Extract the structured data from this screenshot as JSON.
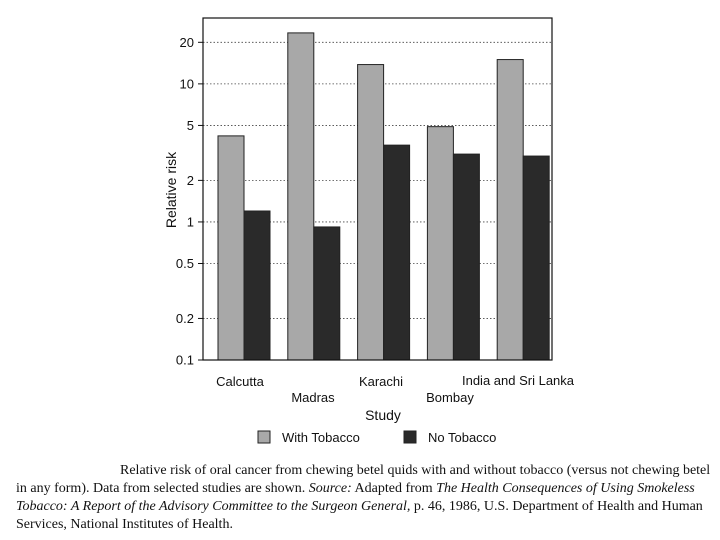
{
  "chart_data": {
    "type": "bar",
    "xlabel": "Study",
    "ylabel": "Relative risk",
    "yscale": "log",
    "ylim": [
      0.1,
      30
    ],
    "yticks": [
      0.1,
      0.2,
      0.5,
      1,
      2,
      5,
      10,
      20
    ],
    "ytick_labels": [
      "0.1",
      "0.2",
      "0.5",
      "1",
      "2",
      "5",
      "10",
      "20"
    ],
    "grid": "horizontal dotted",
    "categories": [
      "Calcutta",
      "Madras",
      "Karachi",
      "Bombay",
      "India and Sri Lanka"
    ],
    "series": [
      {
        "name": "With Tobacco",
        "values": [
          4.2,
          23.4,
          13.8,
          4.9,
          15.0
        ],
        "color": "#a8a8a8"
      },
      {
        "name": "No Tobacco",
        "values": [
          1.2,
          0.92,
          3.6,
          3.1,
          3.0
        ],
        "color": "#2a2a2a"
      }
    ],
    "legend_position": "bottom"
  },
  "caption": {
    "line1": "Relative risk of oral cancer from chewing betel quids with and without tobacco (versus not chewing betel in any form). Data from selected studies are shown.",
    "source_label": "Source:",
    "source_text": "Adapted from",
    "title": "The Health Consequences of Using Smokeless Tobacco: A Report of the Advisory Committee to the Surgeon General,",
    "rest": "p. 46, 1986, U.S. Department of Health and Human Services, National Institutes of Health."
  }
}
